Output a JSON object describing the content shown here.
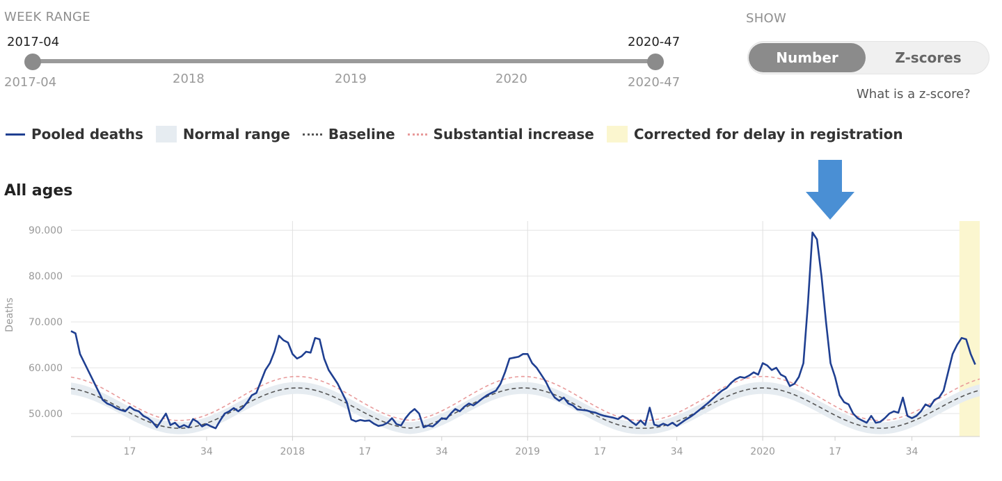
{
  "week_range": {
    "label": "WEEK RANGE",
    "start_value": "2017-04",
    "end_value": "2020-47",
    "start_min_label": "2017-04",
    "end_max_label": "2020-47",
    "year_ticks": [
      "2018",
      "2019",
      "2020"
    ]
  },
  "show": {
    "label": "SHOW",
    "options": [
      "Number",
      "Z-scores"
    ],
    "selected": "Number",
    "help_link": "What is a z-score?"
  },
  "legend": [
    {
      "label": "Pooled deaths",
      "swatch": "line",
      "color": "#1f3f91"
    },
    {
      "label": "Normal range",
      "swatch": "box",
      "color": "#e6ecf1"
    },
    {
      "label": "Baseline",
      "swatch": "dotted",
      "color": "#555555"
    },
    {
      "label": "Substantial increase",
      "swatch": "dotted",
      "color": "#e89a9a"
    },
    {
      "label": "Corrected for delay in registration",
      "swatch": "box",
      "color": "#fbf6cf"
    }
  ],
  "panel_title": "All ages",
  "annotation": {
    "icon": "down-arrow-icon",
    "color": "#4a8fd4"
  },
  "chart_data": {
    "type": "line",
    "ylabel": "Deaths",
    "ylim": [
      45000,
      92000
    ],
    "yticks": [
      50000,
      60000,
      70000,
      80000,
      90000
    ],
    "ytick_labels": [
      "50.000",
      "60.000",
      "70.000",
      "80.000",
      "90.000"
    ],
    "x_start_week_index": 4,
    "x_end_week_index": 205,
    "xticks": [
      {
        "week_index": 17,
        "label": "17"
      },
      {
        "week_index": 34,
        "label": "34"
      },
      {
        "week_index": 53,
        "label": "2018"
      },
      {
        "week_index": 69,
        "label": "17"
      },
      {
        "week_index": 86,
        "label": "34"
      },
      {
        "week_index": 105,
        "label": "2019"
      },
      {
        "week_index": 121,
        "label": "17"
      },
      {
        "week_index": 138,
        "label": "34"
      },
      {
        "week_index": 157,
        "label": "2020"
      },
      {
        "week_index": 173,
        "label": "17"
      },
      {
        "week_index": 190,
        "label": "34"
      }
    ],
    "year_lines": [
      53,
      105,
      157
    ],
    "grid": true,
    "corrected_range": [
      201,
      205
    ],
    "series": [
      {
        "name": "Pooled deaths",
        "color": "#1f3f91",
        "points": [
          [
            4,
            68000
          ],
          [
            5,
            67500
          ],
          [
            6,
            63000
          ],
          [
            7,
            61000
          ],
          [
            8,
            59000
          ],
          [
            9,
            57000
          ],
          [
            10,
            55000
          ],
          [
            11,
            53000
          ],
          [
            12,
            52200
          ],
          [
            13,
            51800
          ],
          [
            14,
            51200
          ],
          [
            15,
            50800
          ],
          [
            16,
            50500
          ],
          [
            17,
            51500
          ],
          [
            18,
            50800
          ],
          [
            19,
            50500
          ],
          [
            20,
            49500
          ],
          [
            21,
            49000
          ],
          [
            22,
            48200
          ],
          [
            23,
            47000
          ],
          [
            24,
            48500
          ],
          [
            25,
            50000
          ],
          [
            26,
            47500
          ],
          [
            27,
            48000
          ],
          [
            28,
            47000
          ],
          [
            29,
            47500
          ],
          [
            30,
            47000
          ],
          [
            31,
            48800
          ],
          [
            32,
            48200
          ],
          [
            33,
            47200
          ],
          [
            34,
            47700
          ],
          [
            35,
            47200
          ],
          [
            36,
            46800
          ],
          [
            37,
            48500
          ],
          [
            38,
            50000
          ],
          [
            39,
            50500
          ],
          [
            40,
            51200
          ],
          [
            41,
            50500
          ],
          [
            42,
            51300
          ],
          [
            43,
            52500
          ],
          [
            44,
            54000
          ],
          [
            45,
            54500
          ],
          [
            46,
            57000
          ],
          [
            47,
            59500
          ],
          [
            48,
            61000
          ],
          [
            49,
            63500
          ],
          [
            50,
            67000
          ],
          [
            51,
            66000
          ],
          [
            52,
            65500
          ],
          [
            53,
            63000
          ],
          [
            54,
            62000
          ],
          [
            55,
            62500
          ],
          [
            56,
            63500
          ],
          [
            57,
            63300
          ],
          [
            58,
            66500
          ],
          [
            59,
            66200
          ],
          [
            60,
            62000
          ],
          [
            61,
            59500
          ],
          [
            62,
            58000
          ],
          [
            63,
            56500
          ],
          [
            64,
            54500
          ],
          [
            65,
            52500
          ],
          [
            66,
            48700
          ],
          [
            67,
            48300
          ],
          [
            68,
            48600
          ],
          [
            69,
            48400
          ],
          [
            70,
            48500
          ],
          [
            71,
            47800
          ],
          [
            72,
            47300
          ],
          [
            73,
            47500
          ],
          [
            74,
            48000
          ],
          [
            75,
            49000
          ],
          [
            76,
            47700
          ],
          [
            77,
            47400
          ],
          [
            78,
            49000
          ],
          [
            79,
            50200
          ],
          [
            80,
            51000
          ],
          [
            81,
            50000
          ],
          [
            82,
            47000
          ],
          [
            83,
            47400
          ],
          [
            84,
            47200
          ],
          [
            85,
            48000
          ],
          [
            86,
            49000
          ],
          [
            87,
            48800
          ],
          [
            88,
            50000
          ],
          [
            89,
            51000
          ],
          [
            90,
            50500
          ],
          [
            91,
            51500
          ],
          [
            92,
            52200
          ],
          [
            93,
            51800
          ],
          [
            94,
            52500
          ],
          [
            95,
            53300
          ],
          [
            96,
            54000
          ],
          [
            97,
            54500
          ],
          [
            98,
            55000
          ],
          [
            99,
            56500
          ],
          [
            100,
            59000
          ],
          [
            101,
            62000
          ],
          [
            102,
            62200
          ],
          [
            103,
            62400
          ],
          [
            104,
            63000
          ],
          [
            105,
            63000
          ],
          [
            106,
            61000
          ],
          [
            107,
            60000
          ],
          [
            108,
            58500
          ],
          [
            109,
            57000
          ],
          [
            110,
            55000
          ],
          [
            111,
            53500
          ],
          [
            112,
            52800
          ],
          [
            113,
            53500
          ],
          [
            114,
            52200
          ],
          [
            115,
            51800
          ],
          [
            116,
            50900
          ],
          [
            117,
            50800
          ],
          [
            118,
            50700
          ],
          [
            119,
            50400
          ],
          [
            120,
            50200
          ],
          [
            121,
            49800
          ],
          [
            122,
            49500
          ],
          [
            123,
            49300
          ],
          [
            124,
            49100
          ],
          [
            125,
            48800
          ],
          [
            126,
            49500
          ],
          [
            127,
            49000
          ],
          [
            128,
            48200
          ],
          [
            129,
            47500
          ],
          [
            130,
            48500
          ],
          [
            131,
            47500
          ],
          [
            132,
            51300
          ],
          [
            133,
            47600
          ],
          [
            134,
            47300
          ],
          [
            135,
            47800
          ],
          [
            136,
            47400
          ],
          [
            137,
            48000
          ],
          [
            138,
            47300
          ],
          [
            139,
            48000
          ],
          [
            140,
            48700
          ],
          [
            141,
            49300
          ],
          [
            142,
            50000
          ],
          [
            143,
            50800
          ],
          [
            144,
            51600
          ],
          [
            145,
            52400
          ],
          [
            146,
            53300
          ],
          [
            147,
            54200
          ],
          [
            148,
            55000
          ],
          [
            149,
            55600
          ],
          [
            150,
            56700
          ],
          [
            151,
            57500
          ],
          [
            152,
            58000
          ],
          [
            153,
            57800
          ],
          [
            154,
            58300
          ],
          [
            155,
            59000
          ],
          [
            156,
            58500
          ],
          [
            157,
            61000
          ],
          [
            158,
            60500
          ],
          [
            159,
            59500
          ],
          [
            160,
            60000
          ],
          [
            161,
            58500
          ],
          [
            162,
            58000
          ],
          [
            163,
            56000
          ],
          [
            164,
            56500
          ],
          [
            165,
            58000
          ],
          [
            166,
            61000
          ],
          [
            167,
            74000
          ],
          [
            168,
            89500
          ],
          [
            169,
            88000
          ],
          [
            170,
            80000
          ],
          [
            171,
            70000
          ],
          [
            172,
            61000
          ],
          [
            173,
            58000
          ],
          [
            174,
            54000
          ],
          [
            175,
            52500
          ],
          [
            176,
            52000
          ],
          [
            177,
            50000
          ],
          [
            178,
            49000
          ],
          [
            179,
            48500
          ],
          [
            180,
            48000
          ],
          [
            181,
            49500
          ],
          [
            182,
            48000
          ],
          [
            183,
            48200
          ],
          [
            184,
            49000
          ],
          [
            185,
            50000
          ],
          [
            186,
            50500
          ],
          [
            187,
            50200
          ],
          [
            188,
            53500
          ],
          [
            189,
            49500
          ],
          [
            190,
            49000
          ],
          [
            191,
            49500
          ],
          [
            192,
            50500
          ],
          [
            193,
            52000
          ],
          [
            194,
            51500
          ],
          [
            195,
            53000
          ],
          [
            196,
            53500
          ],
          [
            197,
            55000
          ],
          [
            198,
            59000
          ],
          [
            199,
            63000
          ],
          [
            200,
            65000
          ],
          [
            201,
            66500
          ],
          [
            202,
            66200
          ],
          [
            203,
            63000
          ],
          [
            204,
            60700
          ]
        ]
      },
      {
        "name": "Baseline",
        "color": "#555555",
        "mean": 51200,
        "amplitude": 4400,
        "peak_week_indices": [
          54,
          104,
          157
        ]
      },
      {
        "name": "Substantial increase",
        "color": "#e89a9a",
        "mean": 53300,
        "amplitude": 4800,
        "peak_week_indices": [
          54,
          104,
          157
        ]
      }
    ],
    "normal_range": {
      "color": "#e6ecf1",
      "half_width": 1300
    }
  }
}
